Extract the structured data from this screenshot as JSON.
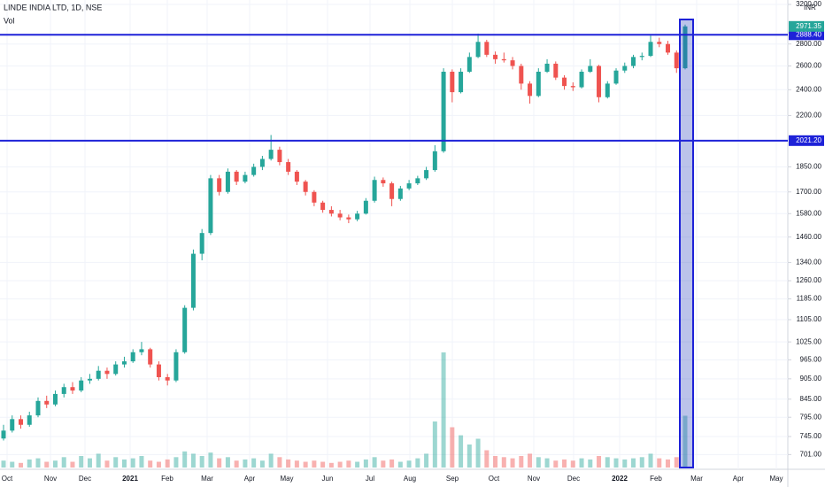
{
  "chart_data": {
    "type": "candlestick",
    "title": "LINDE INDIA LTD, 1D, NSE",
    "volume_label": "Vol",
    "currency": "INR",
    "log_scale": true,
    "grid": true,
    "up_color": "#26a69a",
    "down_color": "#ef5350",
    "line_color": "#1e22d8",
    "categories": [
      "Oct",
      "Nov",
      "Dec",
      "2021",
      "Feb",
      "Mar",
      "Apr",
      "May",
      "Jun",
      "Jul",
      "Aug",
      "Sep",
      "Oct",
      "Nov",
      "Dec",
      "2022",
      "Feb",
      "Mar",
      "Apr",
      "May"
    ],
    "ylim": [
      667,
      3248
    ],
    "yticks": [
      {
        "value": 3200,
        "label": "3200.00"
      },
      {
        "value": 2800,
        "label": "2800.00"
      },
      {
        "value": 2600,
        "label": "2600.00"
      },
      {
        "value": 2400,
        "label": "2400.00"
      },
      {
        "value": 2200,
        "label": "2200.00"
      },
      {
        "value": 1850,
        "label": "1850.00"
      },
      {
        "value": 1700,
        "label": "1700.00"
      },
      {
        "value": 1580,
        "label": "1580.00"
      },
      {
        "value": 1460,
        "label": "1460.00"
      },
      {
        "value": 1340,
        "label": "1340.00"
      },
      {
        "value": 1260,
        "label": "1260.00"
      },
      {
        "value": 1185,
        "label": "1185.00"
      },
      {
        "value": 1105,
        "label": "1105.00"
      },
      {
        "value": 1025,
        "label": "1025.00"
      },
      {
        "value": 965,
        "label": "965.00"
      },
      {
        "value": 905,
        "label": "905.00"
      },
      {
        "value": 845,
        "label": "845.00"
      },
      {
        "value": 795,
        "label": "795.00"
      },
      {
        "value": 745,
        "label": "745.00"
      },
      {
        "value": 701,
        "label": "701.00"
      }
    ],
    "hlines": [
      {
        "value": 2888.4,
        "label": "2888.40"
      },
      {
        "value": 2021.2,
        "label": "2021.20"
      }
    ],
    "last_price_label": "2971.35",
    "vlim": [
      0,
      100
    ],
    "candles": [
      [
        740,
        775,
        735,
        760
      ],
      [
        760,
        800,
        755,
        790
      ],
      [
        790,
        800,
        765,
        775
      ],
      [
        775,
        810,
        770,
        800
      ],
      [
        800,
        850,
        795,
        840
      ],
      [
        840,
        855,
        820,
        830
      ],
      [
        830,
        870,
        825,
        860
      ],
      [
        860,
        890,
        850,
        880
      ],
      [
        880,
        895,
        860,
        870
      ],
      [
        870,
        910,
        865,
        900
      ],
      [
        900,
        920,
        890,
        905
      ],
      [
        905,
        945,
        900,
        930
      ],
      [
        930,
        940,
        905,
        920
      ],
      [
        920,
        960,
        915,
        950
      ],
      [
        950,
        975,
        940,
        960
      ],
      [
        960,
        1000,
        955,
        990
      ],
      [
        990,
        1025,
        980,
        1000
      ],
      [
        1000,
        1005,
        940,
        950
      ],
      [
        950,
        960,
        900,
        910
      ],
      [
        910,
        920,
        885,
        900
      ],
      [
        900,
        1000,
        895,
        990
      ],
      [
        990,
        1160,
        985,
        1150
      ],
      [
        1150,
        1400,
        1140,
        1380
      ],
      [
        1380,
        1500,
        1350,
        1480
      ],
      [
        1480,
        1800,
        1470,
        1780
      ],
      [
        1780,
        1800,
        1680,
        1700
      ],
      [
        1700,
        1840,
        1690,
        1820
      ],
      [
        1820,
        1830,
        1740,
        1760
      ],
      [
        1760,
        1820,
        1750,
        1800
      ],
      [
        1800,
        1870,
        1790,
        1850
      ],
      [
        1850,
        1920,
        1830,
        1900
      ],
      [
        1900,
        2060,
        1890,
        1960
      ],
      [
        1960,
        1980,
        1860,
        1880
      ],
      [
        1880,
        1900,
        1800,
        1820
      ],
      [
        1820,
        1830,
        1740,
        1760
      ],
      [
        1760,
        1770,
        1680,
        1700
      ],
      [
        1700,
        1710,
        1620,
        1640
      ],
      [
        1640,
        1650,
        1585,
        1600
      ],
      [
        1600,
        1620,
        1565,
        1580
      ],
      [
        1580,
        1600,
        1545,
        1560
      ],
      [
        1560,
        1575,
        1530,
        1550
      ],
      [
        1550,
        1595,
        1540,
        1580
      ],
      [
        1580,
        1665,
        1575,
        1650
      ],
      [
        1650,
        1790,
        1640,
        1770
      ],
      [
        1770,
        1785,
        1730,
        1750
      ],
      [
        1750,
        1760,
        1620,
        1660
      ],
      [
        1660,
        1735,
        1650,
        1720
      ],
      [
        1720,
        1770,
        1710,
        1750
      ],
      [
        1750,
        1795,
        1740,
        1780
      ],
      [
        1780,
        1850,
        1770,
        1830
      ],
      [
        1830,
        1990,
        1820,
        1950
      ],
      [
        1950,
        2580,
        1940,
        2550
      ],
      [
        2550,
        2570,
        2300,
        2380
      ],
      [
        2380,
        2580,
        2370,
        2550
      ],
      [
        2550,
        2720,
        2540,
        2680
      ],
      [
        2680,
        2900,
        2670,
        2820
      ],
      [
        2820,
        2840,
        2680,
        2700
      ],
      [
        2700,
        2730,
        2620,
        2660
      ],
      [
        2660,
        2720,
        2630,
        2650
      ],
      [
        2650,
        2680,
        2570,
        2600
      ],
      [
        2600,
        2620,
        2400,
        2450
      ],
      [
        2450,
        2470,
        2290,
        2350
      ],
      [
        2350,
        2580,
        2340,
        2550
      ],
      [
        2550,
        2660,
        2540,
        2620
      ],
      [
        2620,
        2640,
        2480,
        2500
      ],
      [
        2500,
        2520,
        2400,
        2430
      ],
      [
        2430,
        2460,
        2390,
        2420
      ],
      [
        2420,
        2570,
        2410,
        2550
      ],
      [
        2550,
        2660,
        2540,
        2600
      ],
      [
        2600,
        2610,
        2300,
        2340
      ],
      [
        2340,
        2470,
        2330,
        2450
      ],
      [
        2450,
        2580,
        2440,
        2560
      ],
      [
        2560,
        2630,
        2540,
        2600
      ],
      [
        2600,
        2700,
        2580,
        2680
      ],
      [
        2680,
        2720,
        2650,
        2690
      ],
      [
        2690,
        2880,
        2680,
        2820
      ],
      [
        2820,
        2860,
        2770,
        2800
      ],
      [
        2800,
        2830,
        2700,
        2720
      ],
      [
        2720,
        2740,
        2540,
        2580
      ],
      [
        2580,
        2990,
        2570,
        2971.35
      ]
    ],
    "volume": [
      6,
      5,
      4,
      7,
      8,
      5,
      6,
      9,
      5,
      10,
      8,
      12,
      6,
      9,
      7,
      8,
      10,
      6,
      5,
      7,
      9,
      14,
      12,
      10,
      13,
      8,
      9,
      6,
      7,
      8,
      6,
      12,
      9,
      7,
      6,
      5,
      6,
      5,
      4,
      5,
      6,
      5,
      7,
      9,
      6,
      7,
      5,
      6,
      8,
      12,
      40,
      100,
      35,
      28,
      20,
      25,
      15,
      10,
      9,
      8,
      10,
      12,
      9,
      8,
      6,
      7,
      6,
      8,
      7,
      10,
      9,
      8,
      7,
      8,
      9,
      12,
      8,
      7,
      9,
      45
    ]
  }
}
